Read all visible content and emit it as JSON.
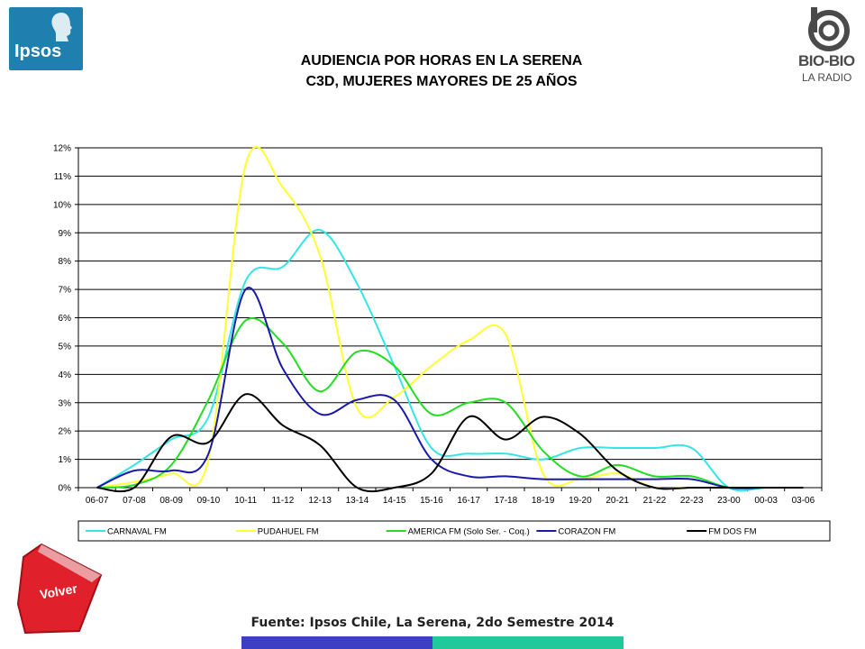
{
  "logos": {
    "ipsos": "Ipsos",
    "bio_line1": "BIO-BIO",
    "bio_line2": "LA RADIO"
  },
  "title_line1": "AUDIENCIA POR HORAS EN LA SERENA",
  "title_line2": "C3D, MUJERES MAYORES DE 25 AÑOS",
  "volver_label": "Volver",
  "source": "Fuente: Ipsos Chile, La Serena, 2do Semestre 2014",
  "colors": {
    "bar_blue": "#3a3fc4",
    "bar_green": "#1fc99a",
    "volver_red": "#e0202a"
  },
  "chart_data": {
    "type": "line",
    "x": [
      "06-07",
      "07-08",
      "08-09",
      "09-10",
      "10-11",
      "11-12",
      "12-13",
      "13-14",
      "14-15",
      "15-16",
      "16-17",
      "17-18",
      "18-19",
      "19-20",
      "20-21",
      "21-22",
      "22-23",
      "23-00",
      "00-03",
      "03-06"
    ],
    "ylim": [
      0,
      12
    ],
    "yticks": [
      "0%",
      "1%",
      "2%",
      "3%",
      "4%",
      "5%",
      "6%",
      "7%",
      "8%",
      "9%",
      "10%",
      "11%",
      "12%"
    ],
    "grid": true,
    "legend_position": "bottom",
    "series": [
      {
        "name": "CARNAVAL FM",
        "color": "#33e6e6",
        "values": [
          0,
          0.8,
          1.7,
          2.5,
          7.3,
          7.8,
          9.1,
          7.2,
          4.3,
          1.4,
          1.2,
          1.2,
          1.0,
          1.4,
          1.4,
          1.4,
          1.4,
          0,
          0,
          0
        ]
      },
      {
        "name": "PUDAHUEL FM",
        "color": "#ffff33",
        "values": [
          0,
          0.2,
          0.5,
          1.0,
          11.4,
          10.6,
          8.2,
          2.8,
          3.2,
          4.3,
          5.2,
          5.4,
          0.5,
          0.3,
          0.5,
          0,
          0,
          0,
          0,
          0
        ]
      },
      {
        "name": "AMERICA FM  (Solo Ser. - Coq.)",
        "color": "#22dd22",
        "values": [
          0,
          0.1,
          0.8,
          3.1,
          5.9,
          5.1,
          3.4,
          4.8,
          4.3,
          2.6,
          3.0,
          3.0,
          1.3,
          0.4,
          0.8,
          0.4,
          0.4,
          0,
          0,
          0
        ]
      },
      {
        "name": "CORAZON FM",
        "color": "#1a1aaa",
        "values": [
          0,
          0.6,
          0.6,
          1.2,
          7.0,
          4.2,
          2.6,
          3.1,
          3.1,
          1.0,
          0.4,
          0.4,
          0.3,
          0.3,
          0.3,
          0.3,
          0.3,
          0,
          0,
          0
        ]
      },
      {
        "name": "FM DOS FM",
        "color": "#000000",
        "values": [
          0,
          0,
          1.8,
          1.6,
          3.3,
          2.2,
          1.5,
          0,
          0,
          0.5,
          2.5,
          1.7,
          2.5,
          1.9,
          0.6,
          0,
          0,
          0,
          0,
          0
        ]
      }
    ]
  }
}
